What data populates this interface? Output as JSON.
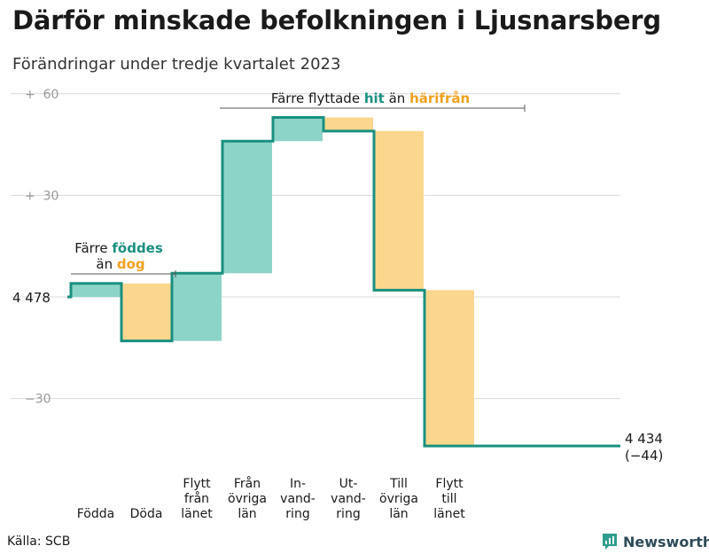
{
  "title": "Därför minskade befolkningen i Ljusnarsberg",
  "subtitle": "Förändringar under tredje kvartalet 2023",
  "source": "Källa: SCB",
  "brand": {
    "name": "Newsworthy",
    "icon": "bar-chart-logo-icon"
  },
  "colors": {
    "increase": "#8dd4c8",
    "decrease": "#fbd78e",
    "line": "#1a9080",
    "teal_text": "#1a9080",
    "orange_text": "#f0a020",
    "grid": "#d9d9d9",
    "tick": "#999999"
  },
  "chart_data": {
    "type": "waterfall",
    "title": "Därför minskade befolkningen i Ljusnarsberg",
    "subtitle": "Förändringar under tredje kvartalet 2023",
    "start_value": 4478,
    "start_label": "4 478",
    "end_value": 4434,
    "end_label": "4 434",
    "end_change_label": "(−44)",
    "y_ticks": [
      {
        "value": 60,
        "label": "+  60"
      },
      {
        "value": 30,
        "label": "+  30"
      },
      {
        "value": 0,
        "label": ""
      },
      {
        "value": -30,
        "label": "−30"
      }
    ],
    "ylim": [
      -48,
      62
    ],
    "steps": [
      {
        "label": "Födda",
        "change": 4,
        "kind": "increase"
      },
      {
        "label": "Döda",
        "change": -17,
        "kind": "decrease"
      },
      {
        "label": "Flytt från länet",
        "change": 20,
        "kind": "increase"
      },
      {
        "label": "Från övriga län",
        "change": 39,
        "kind": "increase"
      },
      {
        "label": "In-vand-ring",
        "change": 7,
        "kind": "increase"
      },
      {
        "label": "Ut-vand-ring",
        "change": -4,
        "kind": "decrease"
      },
      {
        "label": "Till övriga län",
        "change": -47,
        "kind": "decrease"
      },
      {
        "label": "Flytt till länet",
        "change": -46,
        "kind": "decrease"
      }
    ],
    "category_lines": [
      [
        "Födda"
      ],
      [
        "Döda"
      ],
      [
        "Flytt",
        "från",
        "länet"
      ],
      [
        "Från",
        "övriga",
        "län"
      ],
      [
        "In-",
        "vand-",
        "ring"
      ],
      [
        "Ut-",
        "vand-",
        "ring"
      ],
      [
        "Till",
        "övriga",
        "län"
      ],
      [
        "Flytt",
        "till",
        "länet"
      ]
    ],
    "annotations": [
      {
        "id": "births",
        "parts": [
          [
            "Färre ",
            "plain"
          ],
          [
            "föddes",
            "teal"
          ]
        ],
        "parts2": [
          [
            "än ",
            "plain"
          ],
          [
            "dog",
            "orange"
          ]
        ]
      },
      {
        "id": "migration",
        "parts": [
          [
            "Färre flyttade ",
            "plain"
          ],
          [
            "hit",
            "teal"
          ],
          [
            " än ",
            "plain"
          ],
          [
            "härifrån",
            "orange"
          ]
        ]
      }
    ]
  }
}
